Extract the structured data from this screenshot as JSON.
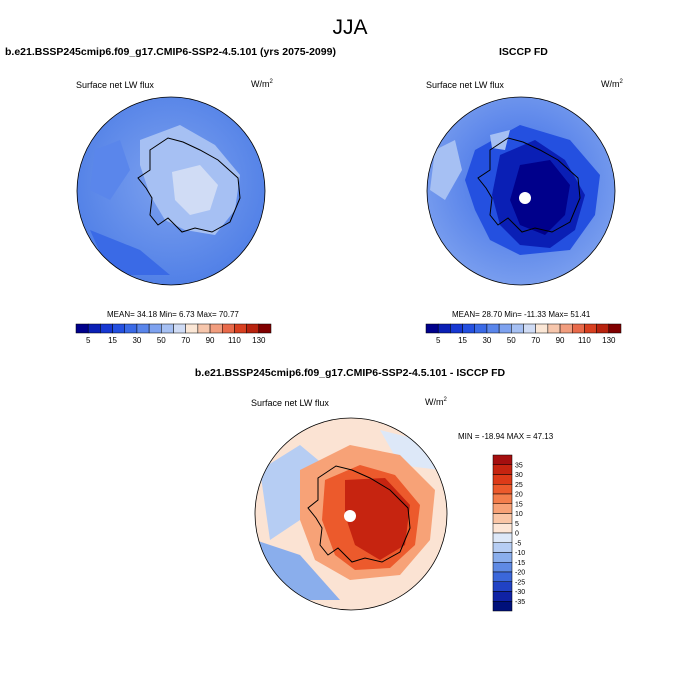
{
  "season": "JJA",
  "panels": [
    {
      "title": "b.e21.BSSP245cmip6.f09_g17.CMIP6-SSP2-4.5.101 (yrs 2075-2099)",
      "field": "Surface net LW flux",
      "units_base": "W/m",
      "units_exp": "2",
      "stats_text": "MEAN=  34.18  Min=   6.73  Max=  70.77"
    },
    {
      "title": "ISCCP FD",
      "field": "Surface net LW flux",
      "units_base": "W/m",
      "units_exp": "2",
      "stats_text": "MEAN=  28.70  Min= -11.33  Max=  51.41"
    },
    {
      "title": "b.e21.BSSP245cmip6.f09_g17.CMIP6-SSP2-4.5.101 - ISCCP FD",
      "field": "Surface net LW flux",
      "units_base": "W/m",
      "units_exp": "2",
      "stats_text": "MIN = -18.94 MAX =  47.13"
    }
  ],
  "chart_data": [
    {
      "type": "heatmap",
      "projection": "south polar stereographic",
      "title": "b.e21.BSSP245cmip6.f09_g17.CMIP6-SSP2-4.5.101 (yrs 2075-2099)",
      "field": "Surface net LW flux",
      "units": "W/m2",
      "mean": 34.18,
      "min": 6.73,
      "max": 70.77,
      "colorbar": {
        "orientation": "horizontal",
        "levels": [
          5,
          10,
          15,
          20,
          30,
          40,
          50,
          60,
          70,
          80,
          90,
          100,
          110,
          120,
          130
        ],
        "tick_labels": [
          "5",
          "15",
          "30",
          "50",
          "70",
          "90",
          "110",
          "130"
        ],
        "colors": [
          "#00008b",
          "#0a1fb5",
          "#1738d2",
          "#2450e0",
          "#3a6ae6",
          "#5a86eb",
          "#7ea2ef",
          "#a6c0f3",
          "#d0dcf5",
          "#fbe7d6",
          "#f6c6ac",
          "#f19d7e",
          "#e86a4a",
          "#d84020",
          "#b8230e",
          "#800000"
        ]
      }
    },
    {
      "type": "heatmap",
      "projection": "south polar stereographic",
      "title": "ISCCP FD",
      "field": "Surface net LW flux",
      "units": "W/m2",
      "mean": 28.7,
      "min": -11.33,
      "max": 51.41,
      "colorbar": {
        "orientation": "horizontal",
        "levels": [
          5,
          10,
          15,
          20,
          30,
          40,
          50,
          60,
          70,
          80,
          90,
          100,
          110,
          120,
          130
        ],
        "tick_labels": [
          "5",
          "15",
          "30",
          "50",
          "70",
          "90",
          "110",
          "130"
        ],
        "colors": [
          "#00008b",
          "#0a1fb5",
          "#1738d2",
          "#2450e0",
          "#3a6ae6",
          "#5a86eb",
          "#7ea2ef",
          "#a6c0f3",
          "#d0dcf5",
          "#fbe7d6",
          "#f6c6ac",
          "#f19d7e",
          "#e86a4a",
          "#d84020",
          "#b8230e",
          "#800000"
        ]
      }
    },
    {
      "type": "heatmap",
      "projection": "south polar stereographic",
      "title": "b.e21.BSSP245cmip6.f09_g17.CMIP6-SSP2-4.5.101 - ISCCP FD",
      "field": "Surface net LW flux",
      "units": "W/m2",
      "min": -18.94,
      "max": 47.13,
      "colorbar": {
        "orientation": "vertical",
        "levels": [
          35,
          30,
          25,
          20,
          15,
          10,
          5,
          0,
          -5,
          -10,
          -15,
          -20,
          -25,
          -30,
          -35
        ],
        "tick_labels": [
          "35",
          "30",
          "25",
          "20",
          "15",
          "10",
          "5",
          "0",
          "-5",
          "-10",
          "-15",
          "-20",
          "-25",
          "-30",
          "-35"
        ],
        "colors": [
          "#a50f0f",
          "#c62410",
          "#dd3a18",
          "#ec5a2c",
          "#f37e4c",
          "#f7a277",
          "#fac6a6",
          "#fde6d6",
          "#dde8f8",
          "#b6cdf3",
          "#8aaeec",
          "#5f8ae4",
          "#3b67da",
          "#2142c4",
          "#0f22a4",
          "#00107a"
        ]
      }
    }
  ]
}
